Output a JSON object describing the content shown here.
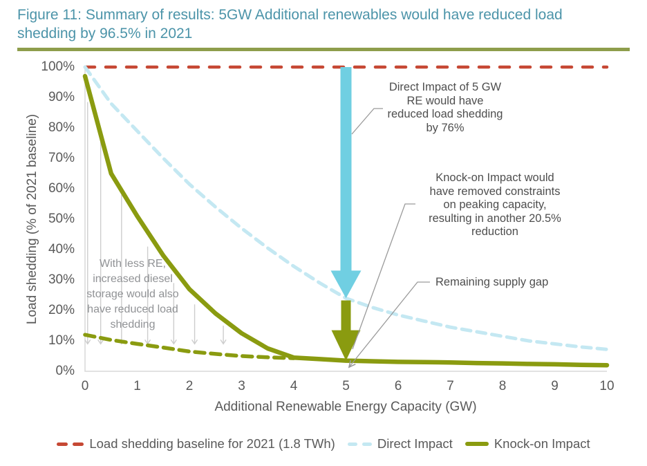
{
  "header": {
    "title": "Figure 11: Summary of results: 5GW Additional renewables would have reduced load shedding by 96.5% in 2021"
  },
  "colors": {
    "title_teal": "#4C94A9",
    "divider_olive": "#8E9D4B",
    "baseline_red": "#C64834",
    "direct_blue_pale": "#C4E8F2",
    "direct_arrow_blue": "#70CFE2",
    "knockon_olive": "#8A9B10",
    "axis_gray": "#D8D8D8",
    "tick_text": "#595959",
    "note_text": "#4E4E4E",
    "diesel_note_text": "#909295",
    "leader_gray": "#9A9A9A",
    "diesel_arrow_gray": "#CDCDCD"
  },
  "chart_data": {
    "type": "line",
    "title": "",
    "xlabel": "Additional Renewable Energy Capacity (GW)",
    "ylabel": "Load shedding (% of 2021 baseline)",
    "xlim": [
      0,
      10
    ],
    "ylim": [
      0,
      100
    ],
    "grid": false,
    "legend_position": "bottom",
    "x_ticks": [
      "0",
      "1",
      "2",
      "3",
      "4",
      "5",
      "6",
      "7",
      "8",
      "9",
      "10"
    ],
    "y_ticks": [
      "0%",
      "10%",
      "20%",
      "30%",
      "40%",
      "50%",
      "60%",
      "70%",
      "80%",
      "90%",
      "100%"
    ],
    "series": [
      {
        "name": "Load shedding baseline for 2021 (1.8 TWh)",
        "style": "dashed",
        "color": "#C64834",
        "x": [
          0,
          10
        ],
        "values": [
          100,
          100
        ]
      },
      {
        "name": "Direct Impact",
        "style": "dashed",
        "color": "#C4E8F2",
        "x": [
          0,
          0.5,
          1,
          1.5,
          2,
          2.5,
          3,
          3.5,
          4,
          4.5,
          5,
          5.5,
          6,
          6.5,
          7,
          7.5,
          8,
          8.5,
          9,
          9.5,
          10
        ],
        "values": [
          100,
          88,
          79,
          70,
          61.5,
          54,
          47,
          40.5,
          34.5,
          29,
          24,
          21,
          18.5,
          16.5,
          14.5,
          13,
          11.5,
          10,
          9,
          8,
          7.2
        ]
      },
      {
        "name": "Knock-on Impact",
        "style": "solid",
        "color": "#8A9B10",
        "x": [
          0,
          0.5,
          1,
          1.5,
          2,
          2.5,
          3,
          3.5,
          4,
          4.5,
          5,
          5.5,
          6,
          6.5,
          7,
          7.5,
          8,
          8.5,
          9,
          9.5,
          10
        ],
        "values": [
          97,
          65,
          51,
          38,
          27,
          19,
          12.5,
          7.5,
          4.5,
          4.0,
          3.5,
          3.3,
          3.1,
          3.0,
          2.9,
          2.7,
          2.6,
          2.4,
          2.3,
          2.1,
          2.0
        ]
      },
      {
        "name": "Diesel storage with less RE",
        "style": "dashed",
        "color": "#8A9B10",
        "x": [
          0,
          0.5,
          1,
          1.5,
          2,
          2.5,
          3,
          3.5,
          4
        ],
        "values": [
          12,
          10.3,
          9,
          7.8,
          6.5,
          5.7,
          5,
          4.6,
          4.3
        ]
      }
    ],
    "legend": [
      "Load shedding baseline for 2021 (1.8 TWh)",
      "Direct Impact",
      "Knock-on Impact"
    ],
    "impact_arrows": [
      {
        "name": "direct-impact-arrow",
        "x": 5,
        "from_pct": 100,
        "to_pct": 24,
        "color": "#70CFE2"
      },
      {
        "name": "knockon-impact-arrow",
        "x": 5,
        "from_pct": 23.3,
        "to_pct": 3.5,
        "color": "#8A9B10"
      }
    ],
    "diesel_arrows": {
      "x_gw": [
        0.05,
        0.3,
        0.7,
        1.2,
        1.7,
        2.1,
        2.65
      ],
      "top_pct": [
        88.5,
        77,
        58,
        41,
        29,
        22,
        15
      ],
      "bottom_pct": 9
    },
    "annotations": {
      "direct_note": "Direct Impact of 5 GW\nRE would have\nreduced load shedding\nby 76%",
      "knockon_note": "Knock-on Impact would\nhave removed constraints\non peaking capacity,\nresulting in another 20.5%\nreduction",
      "remaining_note": "Remaining supply gap",
      "diesel_note": "With less RE,\nincreased diesel\nstorage would also\nhave reduced load\nshedding"
    }
  }
}
